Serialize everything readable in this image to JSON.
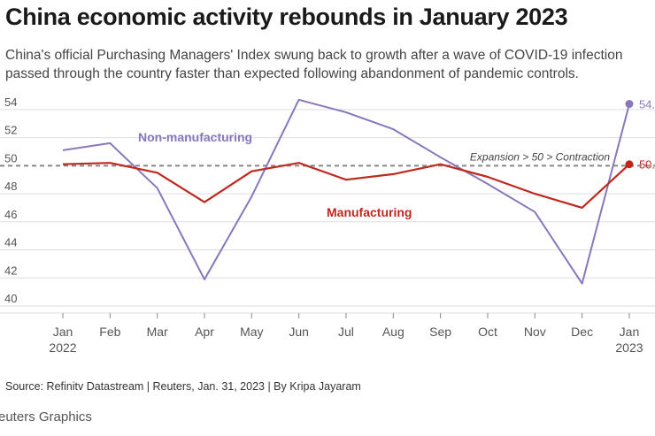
{
  "header": {
    "title": "China economic activity rebounds in January 2023",
    "subtitle_line1": "China's official Purchasing Managers' Index swung back to growth after a wave of COVID-19 infection",
    "subtitle_line2": "passed through the country faster than expected following abandonment of pandemic controls."
  },
  "footer": {
    "source": "Source: Refinitv Datastream | Reuters, Jan. 31, 2023 | By Kripa Jayaram",
    "brand": "euters Graphics"
  },
  "colors": {
    "manufacturing": "#c0281e",
    "non_manufacturing": "#8878bb",
    "threshold": "#888888",
    "grid": "#dddddd",
    "tick_text": "#555555"
  },
  "chart_data": {
    "type": "line",
    "x": [
      "Jan 2022",
      "Feb",
      "Mar",
      "Apr",
      "May",
      "Jun",
      "Jul",
      "Aug",
      "Sep",
      "Oct",
      "Nov",
      "Dec",
      "Jan 2023"
    ],
    "x_tick_labels": [
      [
        "Jan",
        "2022"
      ],
      [
        "Feb"
      ],
      [
        "Mar"
      ],
      [
        "Apr"
      ],
      [
        "May"
      ],
      [
        "Jun"
      ],
      [
        "Jul"
      ],
      [
        "Aug"
      ],
      [
        "Sep"
      ],
      [
        "Oct"
      ],
      [
        "Nov"
      ],
      [
        "Dec"
      ],
      [
        "Jan",
        "2023"
      ]
    ],
    "ylim": [
      40,
      55
    ],
    "yticks": [
      40,
      42,
      44,
      46,
      48,
      50,
      52,
      54
    ],
    "grid": true,
    "series": [
      {
        "name": "Non-manufacturing",
        "key": "non_manufacturing",
        "values": [
          51.1,
          51.6,
          48.4,
          41.9,
          47.8,
          54.7,
          53.8,
          52.6,
          50.6,
          48.7,
          46.7,
          41.6,
          54.4
        ],
        "end_label": "54."
      },
      {
        "name": "Manufacturing",
        "key": "manufacturing",
        "values": [
          50.1,
          50.2,
          49.5,
          47.4,
          49.6,
          50.2,
          49.0,
          49.4,
          50.1,
          49.2,
          48.0,
          47.0,
          50.1
        ],
        "end_label": "50."
      }
    ],
    "reference_line": {
      "value": 50,
      "label": "Expansion > 50 > Contraction"
    }
  }
}
